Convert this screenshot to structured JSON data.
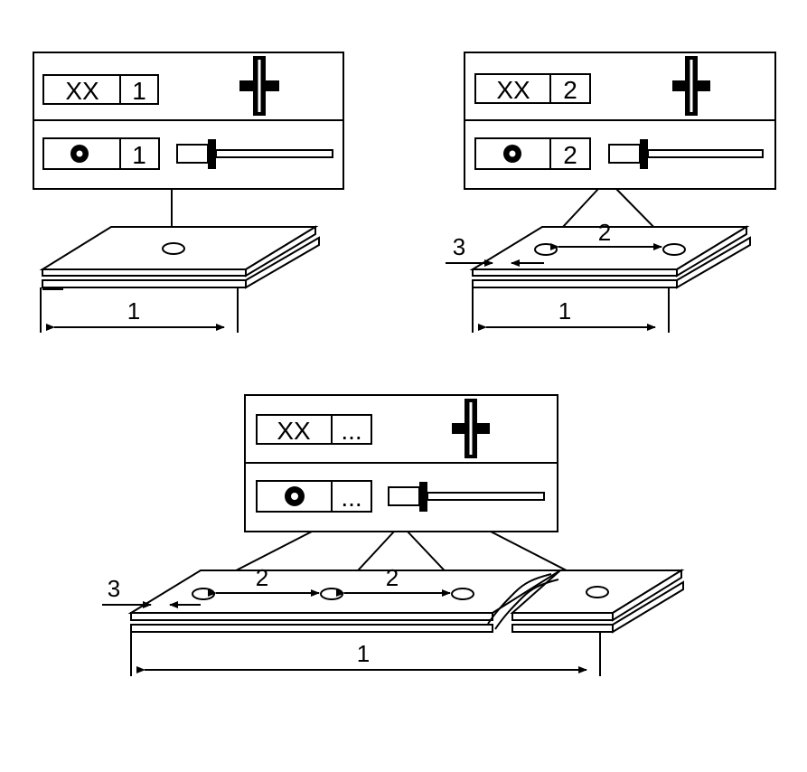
{
  "panels": [
    {
      "id": "single-rivet",
      "code_label": "XX",
      "count_label": "1",
      "symbol_count_label": "1",
      "dim_length": "1"
    },
    {
      "id": "double-rivet",
      "code_label": "XX",
      "count_label": "2",
      "symbol_count_label": "2",
      "dim_length": "1",
      "dim_pitch": "2",
      "dim_edge": "3"
    },
    {
      "id": "multi-rivet",
      "code_label": "XX",
      "count_label": "...",
      "symbol_count_label": "...",
      "dim_length": "1",
      "dim_pitch_a": "2",
      "dim_pitch_b": "2",
      "dim_edge": "3"
    }
  ],
  "icons": {
    "cross_section": "rivet-cross-section-icon",
    "head_symbol": "rivet-head-symbol-icon",
    "side_view": "blind-rivet-side-icon"
  },
  "colors": {
    "line": "#000000",
    "background": "#ffffff"
  }
}
